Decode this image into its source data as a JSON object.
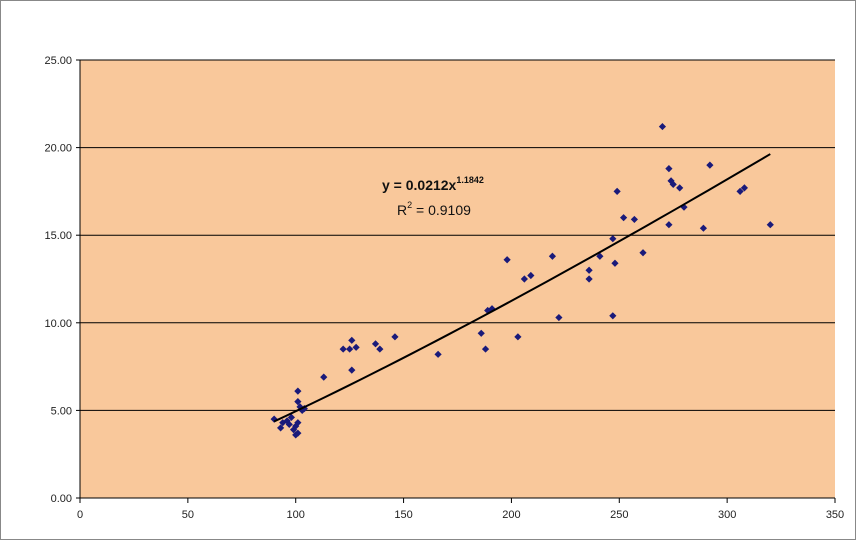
{
  "chart_data": {
    "type": "scatter",
    "title": "",
    "xlabel": "",
    "ylabel": "",
    "xlim": [
      0,
      350
    ],
    "ylim": [
      0,
      25
    ],
    "x_ticks": [
      0,
      50,
      100,
      150,
      200,
      250,
      300,
      350
    ],
    "x_tick_labels": [
      "0",
      "50",
      "100",
      "150",
      "200",
      "250",
      "300",
      "350"
    ],
    "y_ticks": [
      0,
      5,
      10,
      15,
      20,
      25
    ],
    "y_tick_labels": [
      "0.00",
      "5.00",
      "10.00",
      "15.00",
      "20.00",
      "25.00"
    ],
    "grid": "horizontal",
    "plot_background": "#f9c89b",
    "gridline_color": "#000000",
    "marker_color": "#1a1a7a",
    "trendline_color": "#000000",
    "series": [
      {
        "marker": "diamond",
        "points": [
          [
            90,
            4.5
          ],
          [
            93,
            4.0
          ],
          [
            94,
            4.3
          ],
          [
            96,
            4.4
          ],
          [
            97,
            4.2
          ],
          [
            98,
            4.6
          ],
          [
            99,
            3.9
          ],
          [
            100,
            3.6
          ],
          [
            100,
            4.1
          ],
          [
            101,
            3.7
          ],
          [
            101,
            4.3
          ],
          [
            101,
            5.5
          ],
          [
            101,
            6.1
          ],
          [
            102,
            5.2
          ],
          [
            103,
            5.0
          ],
          [
            104,
            5.1
          ],
          [
            113,
            6.9
          ],
          [
            122,
            8.5
          ],
          [
            125,
            8.5
          ],
          [
            126,
            9.0
          ],
          [
            126,
            7.3
          ],
          [
            128,
            8.6
          ],
          [
            137,
            8.8
          ],
          [
            139,
            8.5
          ],
          [
            146,
            9.2
          ],
          [
            166,
            8.2
          ],
          [
            186,
            9.4
          ],
          [
            188,
            8.5
          ],
          [
            189,
            10.7
          ],
          [
            191,
            10.8
          ],
          [
            198,
            13.6
          ],
          [
            203,
            9.2
          ],
          [
            206,
            12.5
          ],
          [
            209,
            12.7
          ],
          [
            219,
            13.8
          ],
          [
            222,
            10.3
          ],
          [
            236,
            12.5
          ],
          [
            236,
            13.0
          ],
          [
            241,
            13.8
          ],
          [
            247,
            10.4
          ],
          [
            247,
            14.8
          ],
          [
            248,
            13.4
          ],
          [
            249,
            17.5
          ],
          [
            252,
            16.0
          ],
          [
            257,
            15.9
          ],
          [
            261,
            14.0
          ],
          [
            270,
            21.2
          ],
          [
            273,
            15.6
          ],
          [
            273,
            18.8
          ],
          [
            274,
            18.1
          ],
          [
            275,
            17.9
          ],
          [
            278,
            17.7
          ],
          [
            280,
            16.6
          ],
          [
            289,
            15.4
          ],
          [
            292,
            19.0
          ],
          [
            306,
            17.5
          ],
          [
            308,
            17.7
          ],
          [
            320,
            15.6
          ]
        ]
      }
    ],
    "trendline": {
      "type": "power",
      "coefficient": 0.0212,
      "exponent": 1.1842,
      "x_range": [
        90,
        320
      ],
      "equation_prefix": "y = 0.0212x",
      "equation_exponent": "1.1842",
      "r2_prefix": "R",
      "r2_superscript": "2",
      "r2_value": " = 0.9109"
    }
  }
}
